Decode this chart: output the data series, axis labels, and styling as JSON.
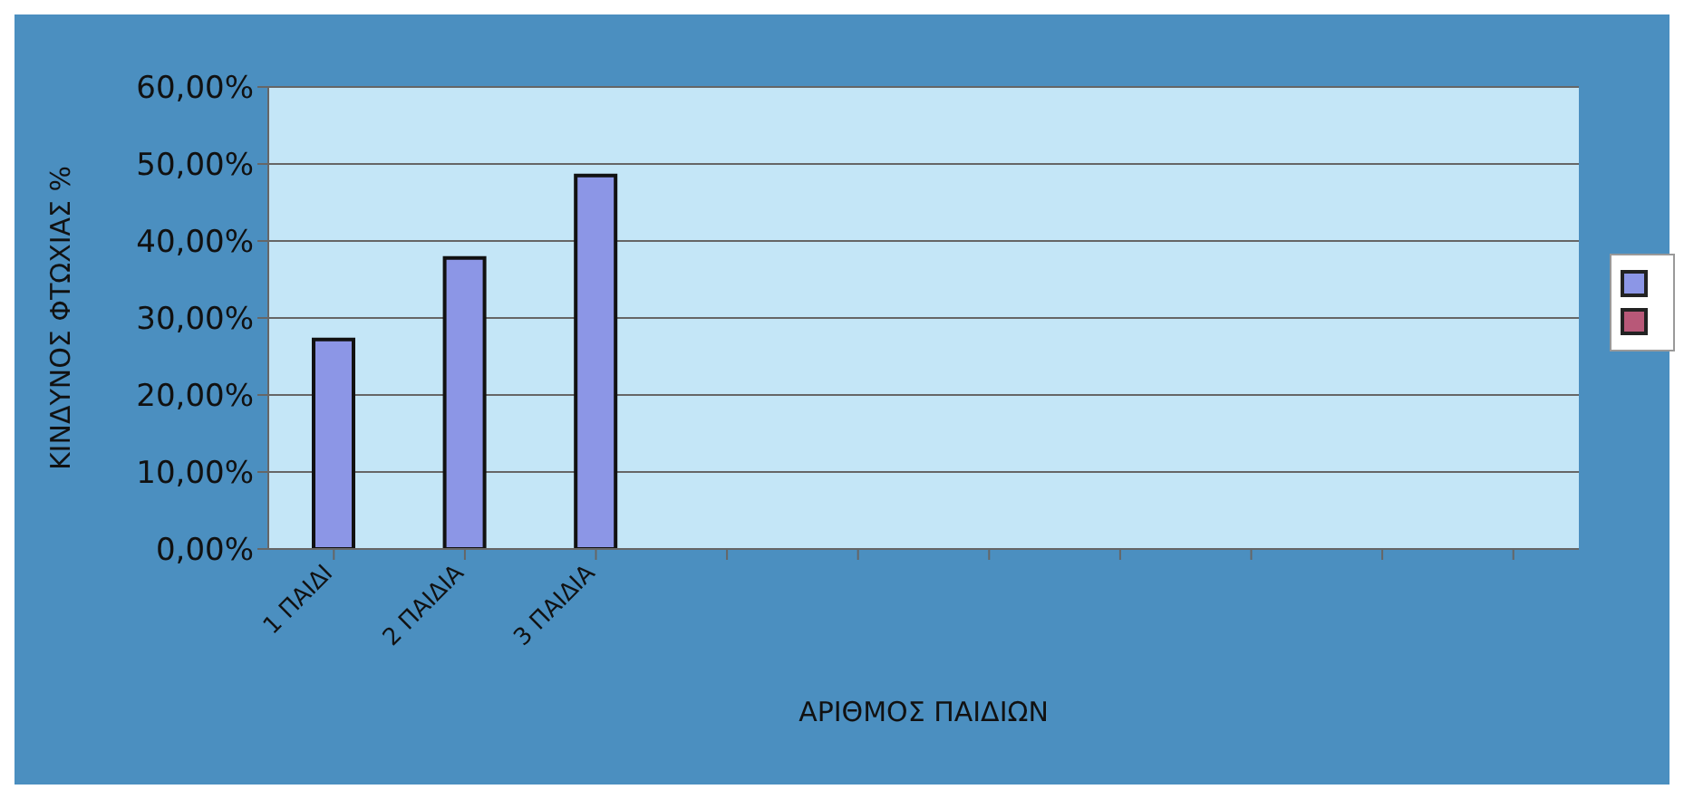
{
  "chart_data": {
    "type": "bar",
    "xlabel": "ΑΡΙΘΜΟΣ ΠΑΙΔΙΩΝ",
    "ylabel": "ΚΙΝΔΥΝΟΣ ΦΤΩΧΙΑΣ %",
    "categories": [
      "1 ΠΑΙΔΙ",
      "2 ΠΑΙΔΙΑ",
      "3 ΠΑΙΔΙΑ",
      null,
      null,
      null,
      null,
      null,
      null,
      null
    ],
    "series": [
      {
        "color": "#8c96e6",
        "values": [
          27.2,
          37.8,
          48.5,
          null,
          null,
          null,
          null,
          null,
          null,
          null
        ]
      }
    ],
    "ylim": [
      0,
      60
    ],
    "yticks": [
      {
        "value": 0,
        "label": "0,00%"
      },
      {
        "value": 10,
        "label": "10,00%"
      },
      {
        "value": 20,
        "label": "20,00%"
      },
      {
        "value": 30,
        "label": "30,00%"
      },
      {
        "value": 40,
        "label": "40,00%"
      },
      {
        "value": 50,
        "label": "50,00%"
      },
      {
        "value": 60,
        "label": "60,00%"
      }
    ],
    "grid": "y"
  }
}
